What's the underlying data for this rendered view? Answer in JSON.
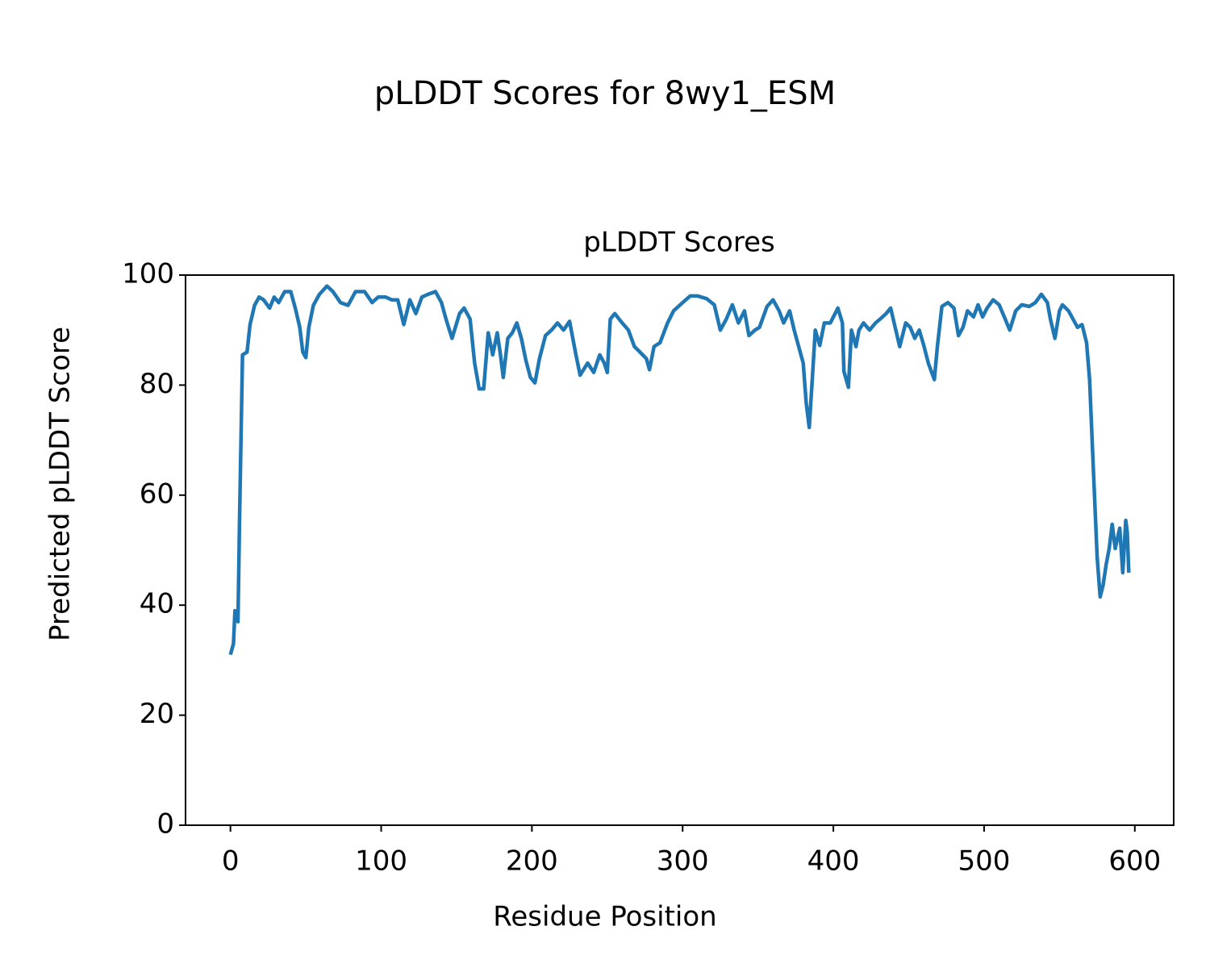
{
  "chart_data": {
    "type": "line",
    "suptitle": "pLDDT Scores for 8wy1_ESM",
    "title": "pLDDT Scores",
    "x_label": "Residue Position",
    "y_label": "Predicted pLDDT Score",
    "xlim": [
      -29.8,
      625.8
    ],
    "ylim": [
      0,
      100
    ],
    "xticks": [
      0,
      100,
      200,
      300,
      400,
      500,
      600
    ],
    "yticks": [
      0,
      20,
      40,
      60,
      80,
      100
    ],
    "grid": false,
    "series": [
      {
        "color": "#1f77b4",
        "x": [
          0,
          2,
          3,
          5,
          6,
          8,
          11,
          13,
          16,
          19,
          22,
          26,
          29,
          32,
          36,
          40,
          43,
          46,
          48,
          50,
          52,
          55,
          59,
          64,
          68,
          73,
          78,
          83,
          89,
          94,
          98,
          103,
          107,
          111,
          115,
          119,
          123,
          127,
          131,
          136,
          140,
          143,
          147,
          152,
          155,
          159,
          162,
          165,
          168,
          171,
          174,
          177,
          179,
          181,
          184,
          187,
          190,
          193,
          196,
          199,
          202,
          205,
          209,
          213,
          217,
          221,
          225,
          229,
          232,
          237,
          241,
          245,
          248,
          250,
          252,
          255,
          259,
          264,
          268,
          271,
          276,
          278,
          281,
          285,
          290,
          294,
          300,
          305,
          310,
          316,
          321,
          325,
          329,
          333,
          337,
          341,
          344,
          348,
          351,
          356,
          360,
          364,
          367,
          371,
          374,
          377,
          380,
          382,
          384,
          386,
          388,
          391,
          394,
          398,
          403,
          406,
          407,
          410,
          412,
          415,
          417,
          420,
          424,
          428,
          431,
          435,
          438,
          441,
          444,
          448,
          451,
          454,
          457,
          460,
          463,
          467,
          469,
          472,
          476,
          480,
          483,
          486,
          489,
          493,
          496,
          499,
          502,
          506,
          510,
          514,
          517,
          521,
          525,
          530,
          534,
          538,
          542,
          544,
          547,
          550,
          552,
          556,
          559,
          562,
          565,
          568,
          570,
          572,
          575,
          577,
          579,
          581,
          583,
          585,
          587,
          590,
          592,
          594,
          595,
          596
        ],
        "values": [
          31,
          33,
          39,
          37,
          55,
          85.5,
          86,
          91,
          94.5,
          96,
          95.5,
          94,
          96,
          95,
          97,
          97,
          94,
          90.5,
          86,
          85,
          90.5,
          94.5,
          96.5,
          98,
          97,
          95,
          94.5,
          97,
          97,
          95,
          96,
          96,
          95.5,
          95.5,
          91,
          95.5,
          93,
          96,
          96.5,
          97,
          95,
          92,
          88.5,
          93,
          94,
          92,
          84,
          79.3,
          79.3,
          89.5,
          85.5,
          89.5,
          85.8,
          81.4,
          88.5,
          89.5,
          91.3,
          88.5,
          84.5,
          81.4,
          80.4,
          84.8,
          89,
          90,
          91.3,
          90,
          91.6,
          85.8,
          81.8,
          84,
          82.3,
          85.5,
          84,
          82.3,
          92,
          93,
          91.6,
          90,
          87,
          86.2,
          84.8,
          82.8,
          87,
          87.7,
          91.3,
          93.5,
          95,
          96.2,
          96.2,
          95.7,
          94.6,
          90,
          92,
          94.6,
          91.3,
          93.5,
          89,
          90,
          90.5,
          94.3,
          95.5,
          93.5,
          91.3,
          93.5,
          90,
          87,
          84,
          76.7,
          72.3,
          81,
          90,
          87.2,
          91.3,
          91.3,
          94,
          91.3,
          82.5,
          79.6,
          90,
          87,
          90,
          91.3,
          90,
          91.3,
          92,
          93,
          94,
          90.5,
          87,
          91.3,
          90.5,
          88.5,
          90,
          87.2,
          84,
          81,
          87,
          94.3,
          95,
          94,
          89,
          90.5,
          93.5,
          92.4,
          94.6,
          92.4,
          94,
          95.5,
          94.6,
          92,
          90,
          93.5,
          94.6,
          94.3,
          95,
          96.5,
          95,
          92,
          88.5,
          93.5,
          94.6,
          93.5,
          92,
          90.5,
          91,
          87.7,
          81,
          67.9,
          48.8,
          41.5,
          43.7,
          47.4,
          50.3,
          54.7,
          50.3,
          54,
          45.9,
          55.4,
          53.2,
          45.9
        ]
      }
    ]
  }
}
